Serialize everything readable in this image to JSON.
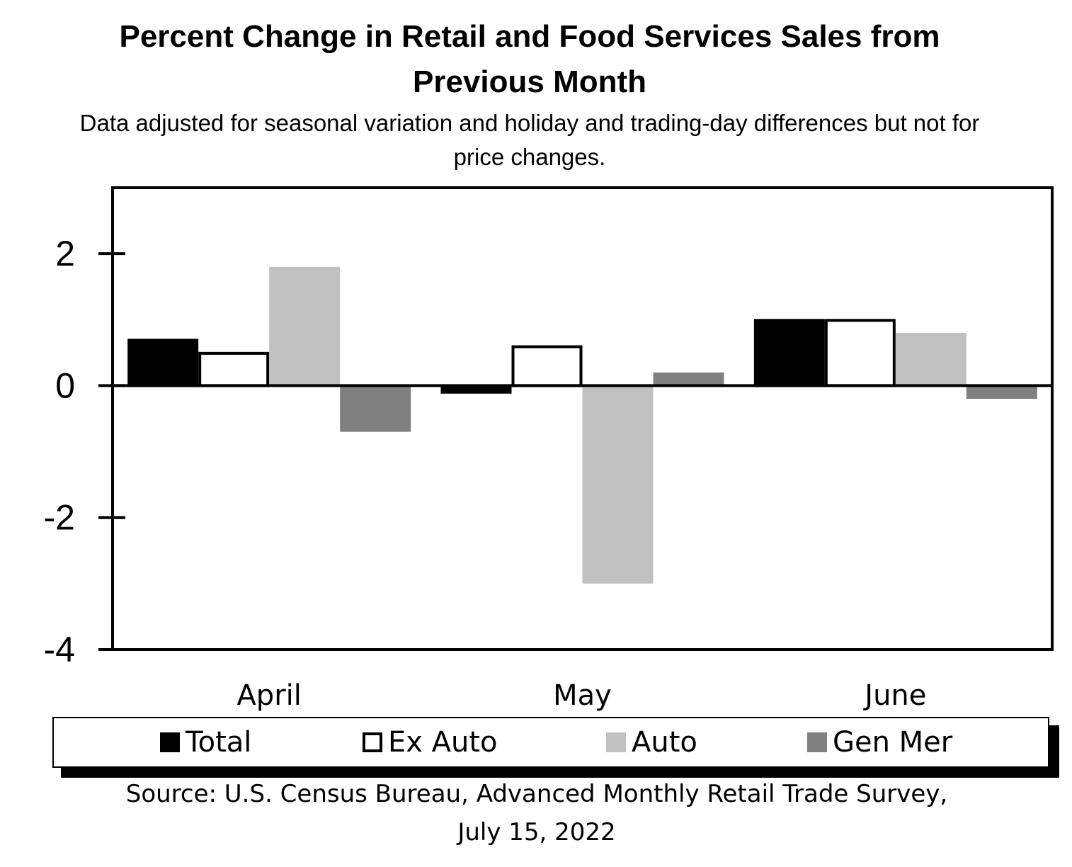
{
  "chart_data": {
    "type": "bar",
    "title_lines": [
      "Percent Change in Retail and Food Services Sales from",
      "Previous Month"
    ],
    "subtitle_lines": [
      "Data adjusted for seasonal variation and holiday and trading-day differences but not for",
      "price changes."
    ],
    "categories": [
      "April",
      "May",
      "June"
    ],
    "series": [
      {
        "name": "Total",
        "values": [
          0.7,
          -0.1,
          1.0
        ],
        "fill": "#000000",
        "stroke": "#000000"
      },
      {
        "name": "Ex Auto",
        "values": [
          0.5,
          0.6,
          1.0
        ],
        "fill": "#ffffff",
        "stroke": "#000000"
      },
      {
        "name": "Auto",
        "values": [
          1.8,
          -3.0,
          0.8
        ],
        "fill": "#c0c0c0",
        "stroke": "none"
      },
      {
        "name": "Gen Mer",
        "values": [
          -0.7,
          0.2,
          -0.2
        ],
        "fill": "#808080",
        "stroke": "none"
      }
    ],
    "y_ticks": [
      "2",
      "0",
      "-2",
      "-4"
    ],
    "y_tick_values": [
      2,
      0,
      -2,
      -4
    ],
    "ylim": [
      -4,
      3
    ],
    "grid": false,
    "legend_position": "bottom",
    "source_lines": [
      "Source: U.S. Census Bureau, Advanced Monthly Retail Trade Survey,",
      "July 15, 2022"
    ]
  }
}
